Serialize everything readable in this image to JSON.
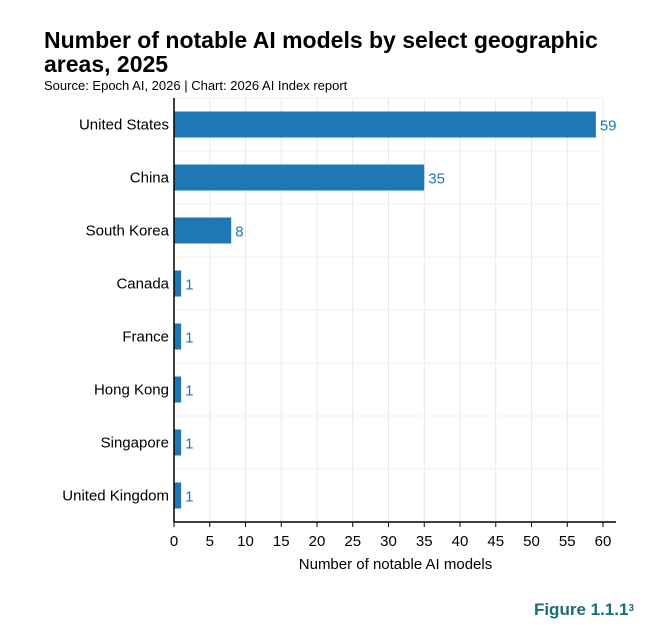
{
  "chart_data": {
    "type": "bar",
    "orientation": "horizontal",
    "title": "Number of notable AI models by select geographic areas, 2025",
    "subtitle": "Source: Epoch AI, 2026 | Chart: 2026 AI Index report",
    "xlabel": "Number of notable AI models",
    "ylabel": "",
    "categories": [
      "United States",
      "China",
      "South Korea",
      "Canada",
      "France",
      "Hong Kong",
      "Singapore",
      "United Kingdom"
    ],
    "values": [
      59,
      35,
      8,
      1,
      1,
      1,
      1,
      1
    ],
    "xlim": [
      0,
      60
    ],
    "xticks": [
      0,
      5,
      10,
      15,
      20,
      25,
      30,
      35,
      40,
      45,
      50,
      55,
      60
    ],
    "grid": true,
    "bar_color": "#1f77b4",
    "label_color": "#1f77b4"
  },
  "figure_label": {
    "text": "Figure 1.1.1",
    "superscript": "3",
    "color": "#1a6e78"
  }
}
